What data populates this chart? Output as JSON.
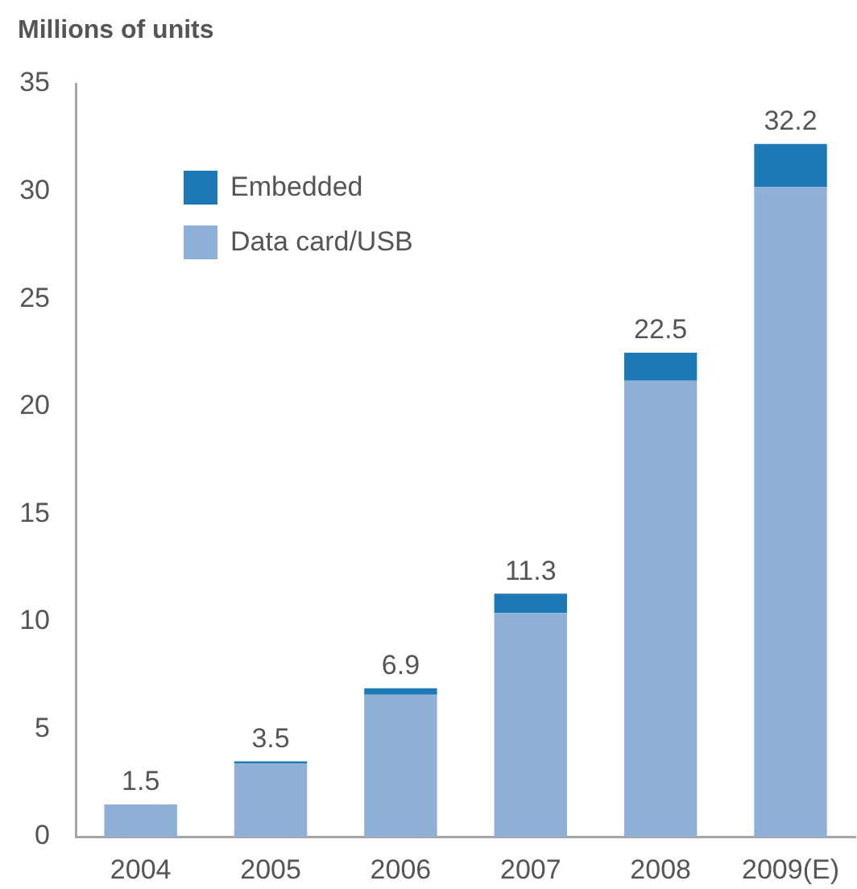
{
  "chart_data": {
    "type": "bar",
    "ylabel": "Millions of units",
    "categories": [
      "2004",
      "2005",
      "2006",
      "2007",
      "2008",
      "2009(E)"
    ],
    "stacked": true,
    "series": [
      {
        "name": "Data card/USB",
        "color": "#8eafd6",
        "values": [
          1.5,
          3.4,
          6.6,
          10.4,
          21.2,
          30.2
        ]
      },
      {
        "name": "Embedded",
        "color": "#1c79b5",
        "values": [
          null,
          0.1,
          0.3,
          0.9,
          1.3,
          2.0
        ]
      }
    ],
    "ylim": [
      0,
      35
    ],
    "yticks": [
      0,
      5,
      10,
      15,
      20,
      25,
      30,
      35
    ],
    "totals": [
      "1.5",
      "3.5",
      "6.9",
      "11.3",
      "22.5",
      "32.2"
    ],
    "grid": false,
    "legend": "top left"
  }
}
